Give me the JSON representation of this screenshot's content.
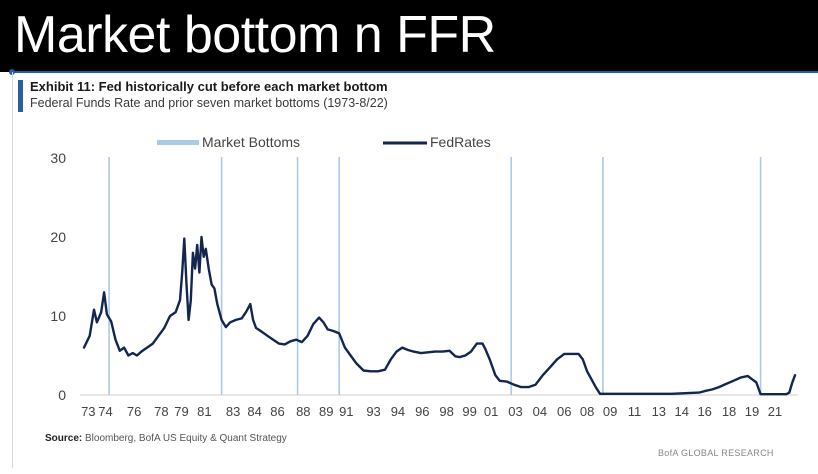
{
  "slide": {
    "title": "Market bottom n FFR"
  },
  "colors": {
    "header_bg": "#000000",
    "accent": "#1f5fa8",
    "bottom_line": "#a9cbe8",
    "fed_line": "#13264f"
  },
  "chart_data": {
    "type": "line",
    "title": "Exhibit 11: Fed historically cut before each market bottom",
    "subtitle": "Federal Funds Rate and prior seven market bottoms (1973-8/22)",
    "ylim": [
      0,
      30
    ],
    "yticks": [
      0,
      10,
      20,
      30
    ],
    "xlim": [
      1973.0,
      2022.6
    ],
    "xticks": [
      {
        "label": "73",
        "year": 1973.3
      },
      {
        "label": "74",
        "year": 1974.5
      },
      {
        "label": "76",
        "year": 1976.5
      },
      {
        "label": "78",
        "year": 1978.4
      },
      {
        "label": "79",
        "year": 1979.8
      },
      {
        "label": "81",
        "year": 1981.4
      },
      {
        "label": "83",
        "year": 1983.4
      },
      {
        "label": "84",
        "year": 1984.9
      },
      {
        "label": "86",
        "year": 1986.5
      },
      {
        "label": "88",
        "year": 1988.3
      },
      {
        "label": "89",
        "year": 1989.9
      },
      {
        "label": "91",
        "year": 1991.3
      },
      {
        "label": "93",
        "year": 1993.2
      },
      {
        "label": "94",
        "year": 1994.9
      },
      {
        "label": "96",
        "year": 1996.6
      },
      {
        "label": "98",
        "year": 1998.3
      },
      {
        "label": "99",
        "year": 1999.9
      },
      {
        "label": "01",
        "year": 2001.4
      },
      {
        "label": "03",
        "year": 2003.1
      },
      {
        "label": "04",
        "year": 2004.8
      },
      {
        "label": "06",
        "year": 2006.5
      },
      {
        "label": "08",
        "year": 2008.1
      },
      {
        "label": "09",
        "year": 2009.7
      },
      {
        "label": "11",
        "year": 2011.4
      },
      {
        "label": "13",
        "year": 2013.1
      },
      {
        "label": "14",
        "year": 2014.7
      },
      {
        "label": "16",
        "year": 2016.3
      },
      {
        "label": "18",
        "year": 2018.0
      },
      {
        "label": "19",
        "year": 2019.6
      },
      {
        "label": "21",
        "year": 2021.2
      }
    ],
    "legend": [
      "Market Bottoms",
      "FedRates"
    ],
    "market_bottoms": [
      1974.75,
      1982.6,
      1987.9,
      1990.8,
      2002.8,
      2009.2,
      2020.2
    ],
    "series": [
      {
        "name": "FedRates",
        "x": [
          1973.0,
          1973.4,
          1973.7,
          1973.9,
          1974.2,
          1974.4,
          1974.6,
          1974.9,
          1975.2,
          1975.5,
          1975.8,
          1976.1,
          1976.4,
          1976.7,
          1977.0,
          1977.4,
          1977.8,
          1978.2,
          1978.6,
          1979.0,
          1979.4,
          1979.7,
          1979.85,
          1980.0,
          1980.15,
          1980.3,
          1980.45,
          1980.6,
          1980.75,
          1980.9,
          1981.05,
          1981.2,
          1981.35,
          1981.5,
          1981.7,
          1981.9,
          1982.1,
          1982.3,
          1982.6,
          1982.9,
          1983.2,
          1983.6,
          1984.0,
          1984.3,
          1984.6,
          1984.8,
          1985.0,
          1985.4,
          1985.8,
          1986.2,
          1986.6,
          1987.0,
          1987.4,
          1987.8,
          1988.2,
          1988.6,
          1989.0,
          1989.4,
          1989.7,
          1990.0,
          1990.4,
          1990.8,
          1991.2,
          1991.6,
          1992.0,
          1992.5,
          1993.0,
          1993.5,
          1994.0,
          1994.4,
          1994.8,
          1995.2,
          1995.6,
          1996.0,
          1996.5,
          1997.0,
          1997.5,
          1998.0,
          1998.5,
          1998.9,
          1999.2,
          1999.6,
          2000.0,
          2000.4,
          2000.8,
          2001.0,
          2001.3,
          2001.7,
          2002.0,
          2002.5,
          2003.0,
          2003.5,
          2004.0,
          2004.5,
          2005.0,
          2005.5,
          2006.0,
          2006.5,
          2007.0,
          2007.5,
          2007.8,
          2008.1,
          2008.4,
          2008.7,
          2009.0,
          2010.0,
          2012.0,
          2014.0,
          2015.9,
          2016.3,
          2016.8,
          2017.3,
          2017.8,
          2018.3,
          2018.8,
          2019.3,
          2019.6,
          2019.9,
          2020.2,
          2021.0,
          2022.0,
          2022.2,
          2022.4,
          2022.6
        ],
        "values": [
          6.0,
          7.5,
          10.8,
          9.2,
          10.5,
          13.0,
          10.2,
          9.3,
          7.0,
          5.6,
          6.0,
          5.0,
          5.3,
          5.0,
          5.5,
          6.0,
          6.5,
          7.5,
          8.5,
          10.0,
          10.5,
          12.0,
          15.5,
          19.8,
          14.0,
          9.5,
          12.0,
          18.0,
          16.0,
          19.0,
          15.5,
          20.0,
          17.5,
          18.5,
          16.0,
          14.0,
          13.5,
          11.5,
          9.5,
          8.6,
          9.2,
          9.5,
          9.7,
          10.5,
          11.5,
          9.5,
          8.5,
          8.0,
          7.5,
          7.0,
          6.5,
          6.4,
          6.8,
          7.0,
          6.7,
          7.5,
          9.0,
          9.8,
          9.2,
          8.3,
          8.1,
          7.8,
          6.0,
          5.0,
          4.0,
          3.1,
          3.0,
          3.0,
          3.2,
          4.5,
          5.5,
          6.0,
          5.7,
          5.5,
          5.3,
          5.4,
          5.5,
          5.5,
          5.6,
          4.9,
          4.8,
          5.0,
          5.5,
          6.5,
          6.5,
          5.8,
          4.5,
          2.5,
          1.8,
          1.7,
          1.3,
          1.0,
          1.0,
          1.3,
          2.5,
          3.5,
          4.5,
          5.2,
          5.2,
          5.2,
          4.5,
          3.0,
          2.0,
          1.0,
          0.15,
          0.15,
          0.15,
          0.15,
          0.3,
          0.5,
          0.7,
          1.0,
          1.4,
          1.8,
          2.2,
          2.4,
          2.0,
          1.6,
          0.1,
          0.1,
          0.1,
          0.3,
          1.5,
          2.5
        ]
      }
    ]
  },
  "footer": {
    "source_label": "Source:",
    "source_text": " Bloomberg, BofA US Equity & Quant Strategy",
    "brand": "BofA GLOBAL RESEARCH"
  }
}
